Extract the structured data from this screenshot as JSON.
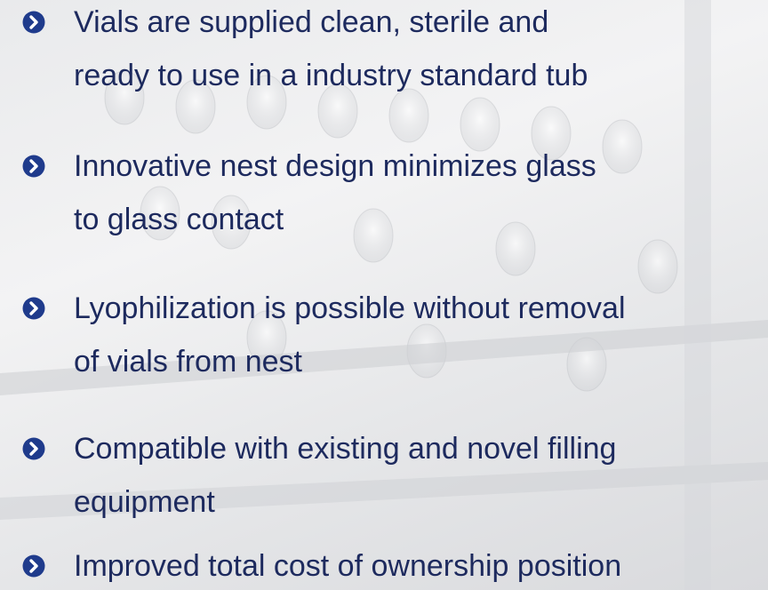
{
  "items": [
    [
      "Vials are supplied clean, sterile and",
      "ready to use in a industry standard tub"
    ],
    [
      "Innovative nest design minimizes glass",
      "to glass contact"
    ],
    [
      "Lyophilization is possible without removal",
      "of vials from nest"
    ],
    [
      "Compatible with existing and novel filling",
      "equipment"
    ],
    [
      "Improved total cost of ownership position"
    ]
  ]
}
